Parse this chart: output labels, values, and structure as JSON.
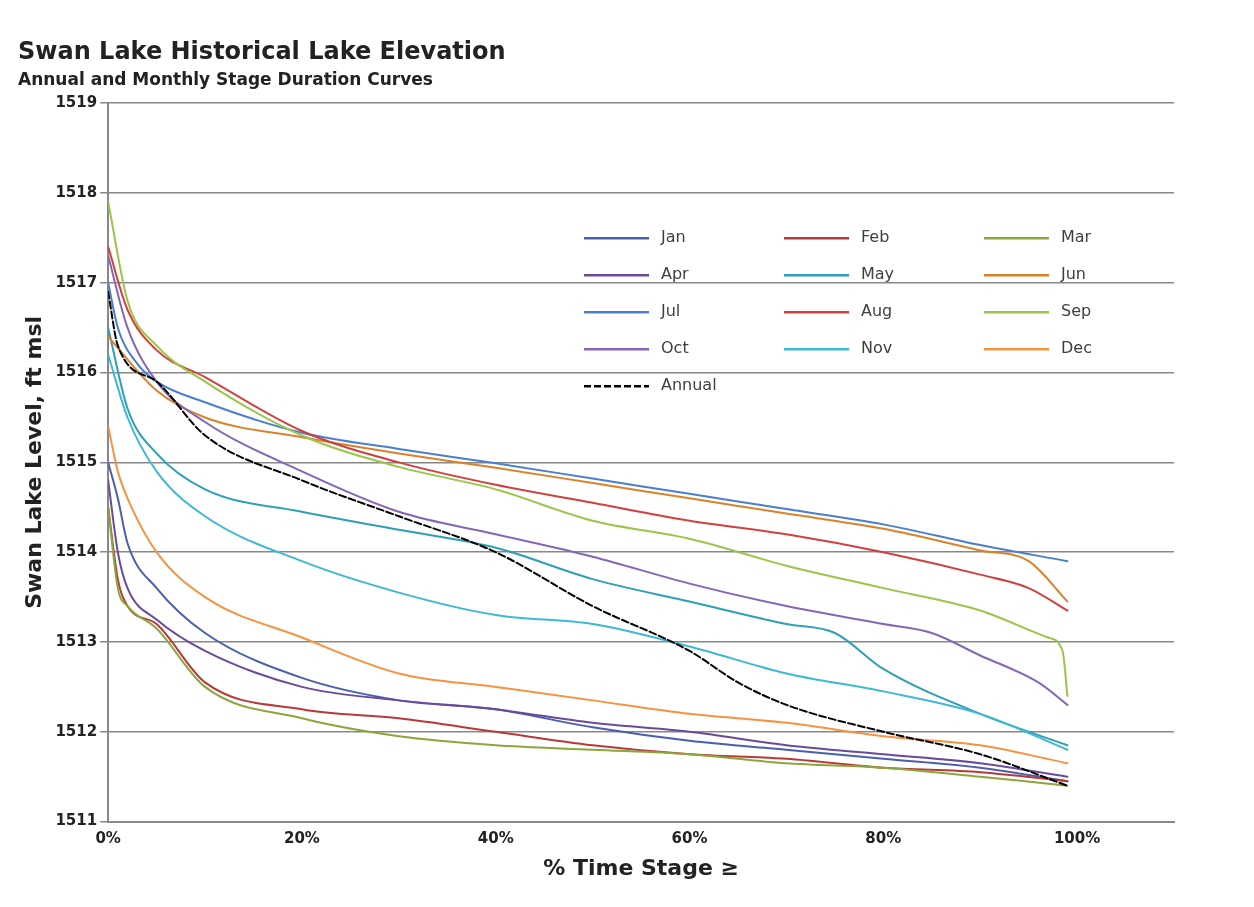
{
  "chart_data": {
    "type": "line",
    "title": "Swan Lake Historical Lake Elevation",
    "subtitle": "Annual and Monthly Stage Duration Curves",
    "xlabel": "% Time Stage ≥",
    "ylabel": "Swan Lake Level, ft msl",
    "xlim": [
      0,
      110
    ],
    "xticks": [
      {
        "value": 0,
        "label": "0%"
      },
      {
        "value": 20,
        "label": "20%"
      },
      {
        "value": 40,
        "label": "40%"
      },
      {
        "value": 60,
        "label": "60%"
      },
      {
        "value": 80,
        "label": "80%"
      },
      {
        "value": 100,
        "label": "100%"
      }
    ],
    "ylim": [
      1511,
      1519
    ],
    "yticks": [
      1511,
      1512,
      1513,
      1514,
      1515,
      1516,
      1517,
      1518,
      1519
    ],
    "grid": "y",
    "legend": "top right",
    "marker": "none",
    "series": [
      {
        "name": "Jan",
        "color": "#4a5fad",
        "x": [
          0,
          1,
          2,
          5,
          10,
          20,
          30,
          40,
          50,
          60,
          70,
          80,
          90,
          99
        ],
        "values": [
          1515.0,
          1514.6,
          1514.1,
          1513.6,
          1513.1,
          1512.6,
          1512.35,
          1512.25,
          1512.05,
          1511.9,
          1511.8,
          1511.7,
          1511.6,
          1511.45
        ]
      },
      {
        "name": "Feb",
        "color": "#b8393a",
        "x": [
          0,
          1,
          2,
          5,
          10,
          20,
          30,
          40,
          50,
          60,
          70,
          80,
          90,
          99
        ],
        "values": [
          1514.5,
          1513.7,
          1513.4,
          1513.2,
          1512.55,
          1512.25,
          1512.15,
          1512.0,
          1511.85,
          1511.75,
          1511.7,
          1511.6,
          1511.55,
          1511.45
        ]
      },
      {
        "name": "Mar",
        "color": "#8aa63c",
        "x": [
          0,
          1,
          2,
          5,
          10,
          20,
          30,
          40,
          50,
          60,
          70,
          80,
          90,
          99
        ],
        "values": [
          1514.5,
          1513.6,
          1513.4,
          1513.15,
          1512.5,
          1512.15,
          1511.95,
          1511.85,
          1511.8,
          1511.75,
          1511.65,
          1511.6,
          1511.5,
          1511.4
        ]
      },
      {
        "name": "Apr",
        "color": "#6a4b9a",
        "x": [
          0,
          1,
          2,
          5,
          10,
          20,
          30,
          40,
          50,
          60,
          70,
          80,
          90,
          99
        ],
        "values": [
          1514.8,
          1514.0,
          1513.6,
          1513.25,
          1512.9,
          1512.5,
          1512.35,
          1512.25,
          1512.1,
          1512.0,
          1511.85,
          1511.75,
          1511.65,
          1511.5
        ]
      },
      {
        "name": "May",
        "color": "#2e9fb5",
        "x": [
          0,
          2,
          5,
          10,
          20,
          30,
          40,
          50,
          60,
          70,
          75,
          80,
          90,
          99
        ],
        "values": [
          1516.5,
          1515.6,
          1515.1,
          1514.7,
          1514.45,
          1514.25,
          1514.05,
          1513.7,
          1513.45,
          1513.2,
          1513.1,
          1512.7,
          1512.2,
          1511.85
        ]
      },
      {
        "name": "Jun",
        "color": "#d9822b",
        "x": [
          0,
          5,
          10,
          20,
          30,
          40,
          50,
          60,
          70,
          80,
          90,
          95,
          99
        ],
        "values": [
          1516.4,
          1515.8,
          1515.5,
          1515.28,
          1515.1,
          1514.94,
          1514.77,
          1514.6,
          1514.43,
          1514.26,
          1514.02,
          1513.9,
          1513.45
        ]
      },
      {
        "name": "Jul",
        "color": "#4a7fd0",
        "x": [
          0,
          1,
          3,
          5,
          10,
          20,
          30,
          40,
          50,
          60,
          70,
          80,
          90,
          99
        ],
        "values": [
          1517.0,
          1516.5,
          1516.1,
          1515.9,
          1515.67,
          1515.33,
          1515.15,
          1514.99,
          1514.82,
          1514.65,
          1514.48,
          1514.31,
          1514.08,
          1513.9
        ]
      },
      {
        "name": "Aug",
        "color": "#d0403e",
        "x": [
          0,
          2,
          5,
          10,
          20,
          30,
          40,
          50,
          60,
          70,
          80,
          90,
          95,
          99
        ],
        "values": [
          1517.4,
          1516.7,
          1516.25,
          1515.95,
          1515.35,
          1515.0,
          1514.75,
          1514.55,
          1514.35,
          1514.2,
          1514.0,
          1513.75,
          1513.6,
          1513.35
        ]
      },
      {
        "name": "Sep",
        "color": "#9bc54a",
        "x": [
          0,
          2,
          5,
          10,
          20,
          30,
          40,
          50,
          60,
          70,
          80,
          90,
          97,
          98.5,
          99
        ],
        "values": [
          1517.9,
          1516.8,
          1516.3,
          1515.9,
          1515.3,
          1514.95,
          1514.7,
          1514.35,
          1514.15,
          1513.85,
          1513.6,
          1513.35,
          1513.05,
          1512.9,
          1512.4
        ]
      },
      {
        "name": "Oct",
        "color": "#8465b8",
        "x": [
          0,
          2,
          5,
          10,
          20,
          30,
          40,
          50,
          60,
          70,
          80,
          85,
          90,
          96,
          99
        ],
        "values": [
          1517.3,
          1516.5,
          1515.9,
          1515.45,
          1514.9,
          1514.45,
          1514.2,
          1513.95,
          1513.65,
          1513.4,
          1513.2,
          1513.1,
          1512.85,
          1512.55,
          1512.3
        ]
      },
      {
        "name": "Nov",
        "color": "#3fb8d6",
        "x": [
          0,
          2,
          5,
          10,
          20,
          30,
          40,
          50,
          60,
          70,
          80,
          90,
          99
        ],
        "values": [
          1516.2,
          1515.5,
          1514.9,
          1514.4,
          1513.9,
          1513.55,
          1513.3,
          1513.2,
          1512.95,
          1512.65,
          1512.45,
          1512.2,
          1511.8
        ]
      },
      {
        "name": "Dec",
        "color": "#f59342",
        "x": [
          0,
          1,
          2,
          5,
          10,
          20,
          30,
          40,
          50,
          60,
          70,
          80,
          90,
          99
        ],
        "values": [
          1515.4,
          1514.9,
          1514.6,
          1514.0,
          1513.5,
          1513.05,
          1512.65,
          1512.5,
          1512.35,
          1512.2,
          1512.1,
          1511.95,
          1511.85,
          1511.65
        ]
      },
      {
        "name": "Annual",
        "color": "#000000",
        "line_style": "dashed",
        "x": [
          0,
          1,
          5,
          10,
          20,
          30,
          40,
          50,
          60,
          65,
          70,
          80,
          90,
          99
        ],
        "values": [
          1516.9,
          1516.3,
          1515.9,
          1515.3,
          1514.8,
          1514.4,
          1514.0,
          1513.4,
          1512.9,
          1512.55,
          1512.3,
          1512.0,
          1511.75,
          1511.4
        ]
      }
    ]
  }
}
